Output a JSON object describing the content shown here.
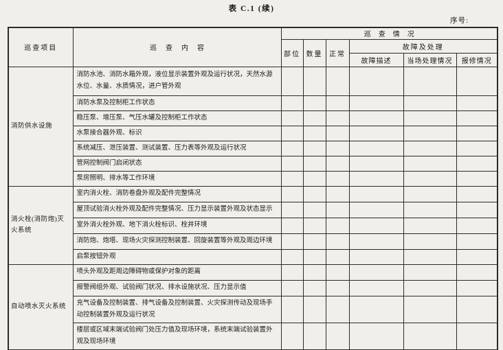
{
  "page": {
    "title": "表 C.1 (续)",
    "serial_label": "序号:"
  },
  "table": {
    "headers": {
      "item": "巡查项目",
      "content": "巡查内容",
      "situation": "巡查情况",
      "location": "部位",
      "quantity": "数量",
      "normal": "正常",
      "fault_handling": "故障及处理",
      "fault_desc": "故障描述",
      "onsite_handling": "当场处理情况",
      "repair": "报修情况"
    },
    "entry_columns": [
      "location",
      "quantity",
      "normal",
      "fault-description",
      "onsite-handling",
      "repair"
    ],
    "groups": [
      {
        "name": "消防供水设施",
        "rows": [
          {
            "content": "消防水池、消防水箱外观，液位显示装置外观及运行状况，天然水源水位、水量、水质情况，进户管外观"
          },
          {
            "content": "消防水泵及控制柜工作状态"
          },
          {
            "content": "稳压泵、增压泵、气压水罐及控制柜工作状态"
          },
          {
            "content": "水泵接合器外观、标识"
          },
          {
            "content": "系统减压、泄压装置、测试装置、压力表等外观及运行状况"
          },
          {
            "content": "管网控制阀门启闭状态"
          },
          {
            "content": "泵房照明、排水等工作环境"
          }
        ]
      },
      {
        "name": "消火栓(消防炮)灭火系统",
        "rows": [
          {
            "content": "室内消火栓、消防卷盘外观及配件完整情况"
          },
          {
            "content": "屋顶试验消火栓外观及配件完整情况、压力显示装置外观及状态显示"
          },
          {
            "content": "室外消火栓外观、地下消火栓标识、栓井环境"
          },
          {
            "content": "消防炮、炮塔、现场火灾探测控制装置、回旋装置等外观及周边环境"
          },
          {
            "content": "启泵按钮外观"
          }
        ]
      },
      {
        "name": "自动喷水灭火系统",
        "rows": [
          {
            "content": "喷头外观及距周边障碍物或保护对象的距离"
          },
          {
            "content": "报警阀组外观、试验阀门状况、排水设施状况、压力显示值"
          },
          {
            "content": "充气设备及控制装置、排气设备及控制装置、火灾探测传动及现场手动控制装置外观及运行状况"
          },
          {
            "content": "楼层或区域末端试验阀门处压力值及现场环境，系统末端试验装置外观及现场环境"
          }
        ]
      }
    ]
  }
}
